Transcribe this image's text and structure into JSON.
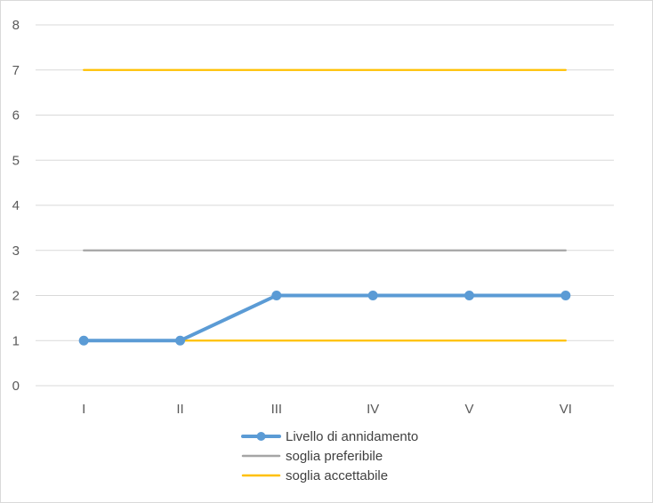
{
  "chart_data": {
    "type": "line",
    "title": "",
    "xlabel": "",
    "ylabel": "",
    "categories": [
      "I",
      "II",
      "III",
      "IV",
      "V",
      "VI"
    ],
    "ylim": [
      0,
      8
    ],
    "yticks": [
      0,
      1,
      2,
      3,
      4,
      5,
      6,
      7,
      8
    ],
    "grid": true,
    "legend_position": "bottom",
    "series": [
      {
        "name": "Livello di annidamento",
        "values": [
          1,
          1,
          2,
          2,
          2,
          2
        ],
        "color": "#5b9bd5",
        "markers": true
      },
      {
        "name": "soglia preferibile",
        "values": [
          3,
          3,
          3,
          3,
          3,
          3
        ],
        "color": "#a5a5a5",
        "markers": false
      },
      {
        "name": "soglia accettabile",
        "values": [
          7,
          7,
          7,
          7,
          7,
          7
        ],
        "color": "#ffc000",
        "markers": false
      },
      {
        "name": "soglia accettabile",
        "values": [
          1,
          1,
          1,
          1,
          1,
          1
        ],
        "color": "#ffc000",
        "markers": false,
        "legend": false
      }
    ]
  }
}
